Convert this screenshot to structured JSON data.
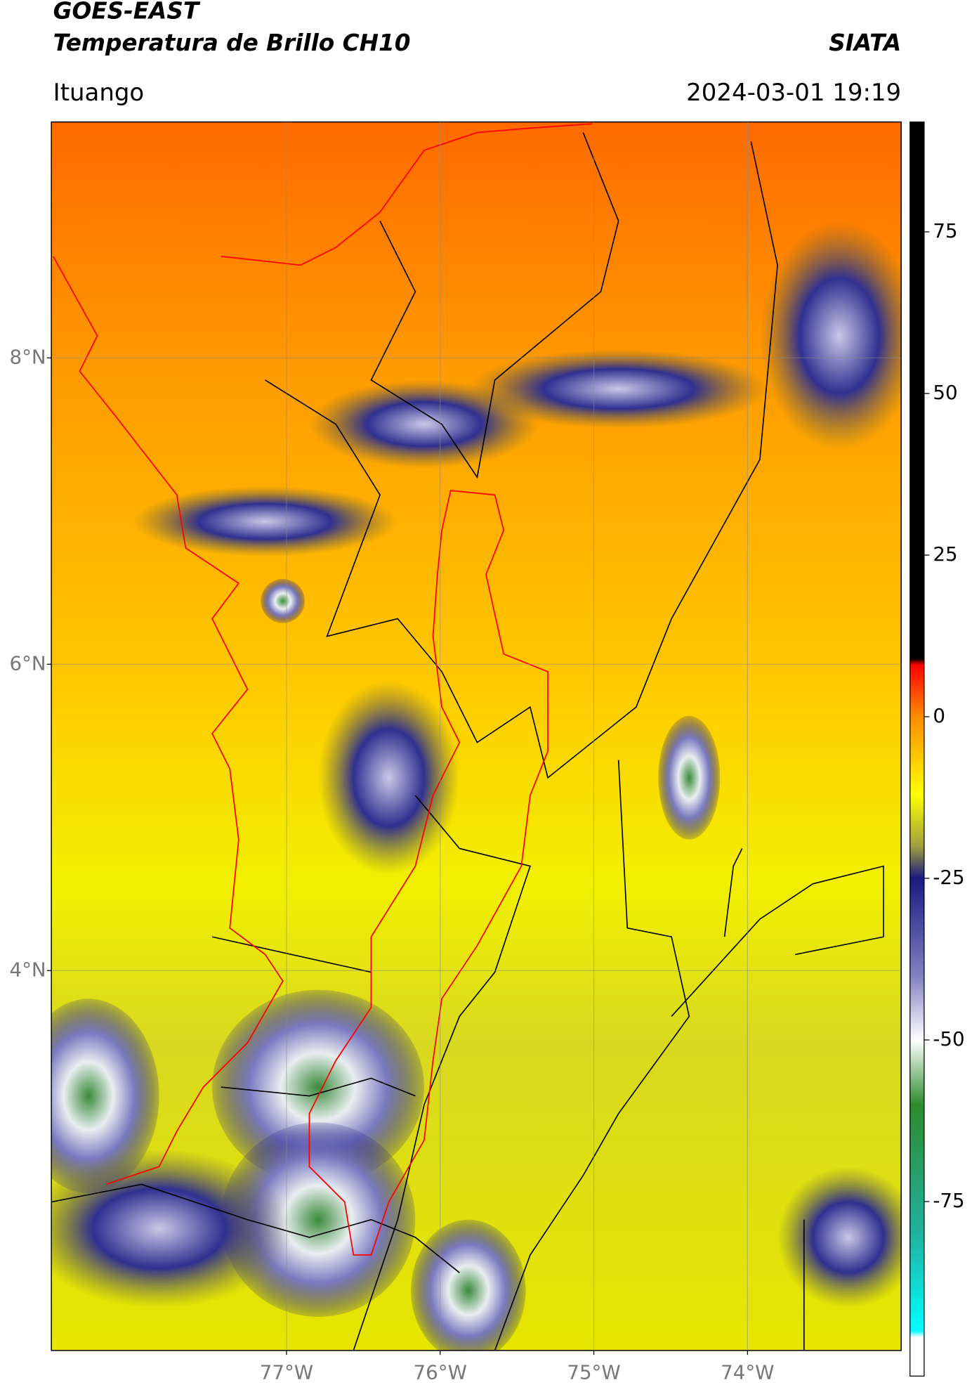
{
  "header": {
    "title": "GOES-EAST",
    "subtitle": "Temperatura de Brillo CH10",
    "brand": "SIATA",
    "location": "Ituango",
    "timestamp": "2024-03-01 19:19"
  },
  "map": {
    "type": "map",
    "xlim": [
      -78.53,
      -73.0
    ],
    "ylim": [
      1.52,
      9.54
    ],
    "xticks": [
      {
        "value": -77,
        "label": "77°W"
      },
      {
        "value": -76,
        "label": "76°W"
      },
      {
        "value": -75,
        "label": "75°W"
      },
      {
        "value": -74,
        "label": "74°W"
      }
    ],
    "yticks": [
      {
        "value": 8,
        "label": "8°N"
      },
      {
        "value": 6,
        "label": "6°N"
      },
      {
        "value": 4,
        "label": "4°N"
      }
    ],
    "grid": true
  },
  "colorbar": {
    "lim": [
      -102,
      92
    ],
    "ticks": [
      75,
      50,
      25,
      0,
      -25,
      -50,
      -75
    ],
    "colormap": [
      {
        "value": 92,
        "color": "#000000"
      },
      {
        "value": 9,
        "color": "#000000"
      },
      {
        "value": 8,
        "color": "#ff0000"
      },
      {
        "value": 0,
        "color": "#ff8c00"
      },
      {
        "value": -12,
        "color": "#ffff00"
      },
      {
        "value": -20,
        "color": "#a0a040"
      },
      {
        "value": -25,
        "color": "#1a1a80"
      },
      {
        "value": -40,
        "color": "#8080c0"
      },
      {
        "value": -50,
        "color": "#ffffff"
      },
      {
        "value": -60,
        "color": "#2e8b2e"
      },
      {
        "value": -80,
        "color": "#20b2a0"
      },
      {
        "value": -95,
        "color": "#00ffff"
      },
      {
        "value": -96,
        "color": "#ffffff"
      },
      {
        "value": -102,
        "color": "#ffffff"
      }
    ]
  }
}
